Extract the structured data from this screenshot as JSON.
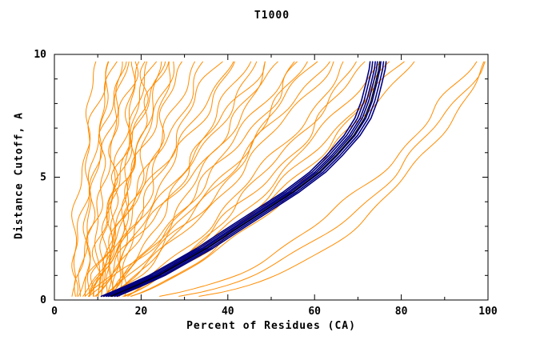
{
  "chart_data": {
    "type": "line",
    "title": "T1000",
    "xlabel": "Percent of Residues (CA)",
    "ylabel": "Distance Cutoff, A",
    "xlim": [
      0,
      100
    ],
    "ylim": [
      0,
      10
    ],
    "x_ticks": [
      0,
      20,
      40,
      60,
      80,
      100
    ],
    "x_minor_ticks": [
      10,
      30,
      50,
      70,
      90
    ],
    "y_ticks": [
      0,
      5,
      10
    ],
    "y_minor_ticks": [
      1,
      2,
      3,
      4,
      6,
      7,
      8,
      9
    ],
    "grid": false,
    "legend": "none",
    "colors": {
      "ensemble": "#ff8c00",
      "cluster": "#000080",
      "reference": "#000000",
      "frame": "#000000"
    },
    "reference_curve": {
      "points": [
        [
          13,
          0.15
        ],
        [
          15,
          0.3
        ],
        [
          19,
          0.6
        ],
        [
          24,
          1.0
        ],
        [
          29,
          1.5
        ],
        [
          35,
          2.1
        ],
        [
          41,
          2.8
        ],
        [
          48,
          3.6
        ],
        [
          55,
          4.4
        ],
        [
          61,
          5.2
        ],
        [
          65,
          5.9
        ],
        [
          69,
          6.7
        ],
        [
          71.5,
          7.4
        ],
        [
          73,
          8.1
        ],
        [
          74,
          8.8
        ],
        [
          74.8,
          9.4
        ],
        [
          75,
          9.7
        ]
      ]
    },
    "cluster_offsets": [
      -2.2,
      -1.6,
      -1.0,
      -0.5,
      0.3,
      0.9,
      1.5
    ],
    "ensemble_curves": [
      [
        4,
        10,
        1.6,
        1.2
      ],
      [
        5,
        12,
        1.8,
        1.5
      ],
      [
        6,
        13,
        1.4,
        1.0
      ],
      [
        7,
        14,
        2.0,
        1.3
      ],
      [
        8,
        15,
        1.5,
        1.8
      ],
      [
        5,
        16,
        1.2,
        1.5
      ],
      [
        9,
        17,
        1.7,
        1.2
      ],
      [
        10,
        18,
        1.5,
        2.0
      ],
      [
        11,
        19,
        1.3,
        1.4
      ],
      [
        12,
        20,
        1.6,
        1.6
      ],
      [
        13,
        21,
        1.4,
        1.2
      ],
      [
        9,
        22,
        1.1,
        2.2
      ],
      [
        10,
        23,
        1.5,
        1.5
      ],
      [
        12,
        24,
        1.3,
        1.8
      ],
      [
        14,
        25,
        1.6,
        1.3
      ],
      [
        8,
        26,
        1.2,
        2.0
      ],
      [
        15,
        27,
        1.5,
        1.5
      ],
      [
        11,
        28,
        1.3,
        1.7
      ],
      [
        13,
        30,
        1.2,
        2.0
      ],
      [
        16,
        32,
        1.4,
        1.5
      ],
      [
        5,
        35,
        0.95,
        1.5
      ],
      [
        6,
        38,
        1.0,
        2.0
      ],
      [
        7,
        40,
        0.9,
        1.5
      ],
      [
        8,
        42,
        1.1,
        1.8
      ],
      [
        6,
        45,
        0.85,
        1.5
      ],
      [
        9,
        48,
        1.0,
        2.0
      ],
      [
        10,
        50,
        0.8,
        1.5
      ],
      [
        7,
        52,
        0.95,
        1.8
      ],
      [
        11,
        55,
        0.9,
        1.5
      ],
      [
        8,
        57,
        0.85,
        2.0
      ],
      [
        12,
        60,
        0.9,
        1.5
      ],
      [
        9,
        62,
        0.8,
        1.8
      ],
      [
        13,
        47,
        1.05,
        1.5
      ],
      [
        10,
        58,
        0.75,
        1.5
      ],
      [
        10,
        64,
        0.8,
        1.5
      ],
      [
        12,
        68,
        0.75,
        1.5
      ],
      [
        11,
        72,
        0.7,
        1.8
      ],
      [
        13,
        75,
        0.72,
        1.2
      ],
      [
        12,
        78,
        0.68,
        1.5
      ],
      [
        14,
        80,
        0.7,
        1.5
      ],
      [
        13,
        82,
        0.65,
        1.2
      ],
      [
        15,
        70,
        0.78,
        1.5
      ],
      [
        14,
        97,
        0.5,
        1.5
      ],
      [
        16,
        99,
        0.45,
        1.2
      ],
      [
        18,
        100,
        0.4,
        1.0
      ]
    ]
  }
}
